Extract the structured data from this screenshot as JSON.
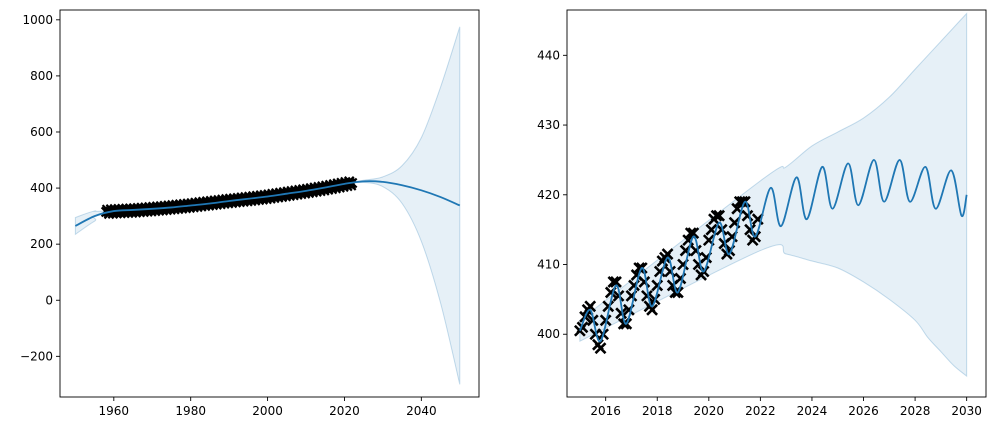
{
  "chart_data": [
    {
      "type": "line",
      "title": "",
      "xlabel": "",
      "ylabel": "",
      "xlim": [
        1946,
        2055
      ],
      "ylim": [
        -345,
        1035
      ],
      "xticks": [
        "1960",
        "1980",
        "2000",
        "2020",
        "2040"
      ],
      "yticks": [
        "−200",
        "0",
        "200",
        "400",
        "600",
        "800",
        "1000"
      ],
      "grid": false,
      "legend": "none",
      "colors": {
        "mean": "#1f77b4",
        "band": "#1f77b4",
        "observed": "#000000"
      },
      "series": [
        {
          "role": "mean",
          "x": [
            1950,
            1955,
            1960,
            1965,
            1970,
            1975,
            1980,
            1985,
            1990,
            1995,
            2000,
            2005,
            2010,
            2015,
            2020,
            2025,
            2030,
            2035,
            2040,
            2045,
            2050
          ],
          "y": [
            265,
            300,
            318,
            322,
            326,
            331,
            338,
            345,
            354,
            362,
            370,
            380,
            390,
            402,
            415,
            424,
            422,
            410,
            392,
            368,
            338
          ]
        },
        {
          "role": "band",
          "x": [
            1950,
            1955,
            1960,
            2010,
            2020,
            2025,
            2030,
            2035,
            2040,
            2045,
            2050
          ],
          "upper": [
            295,
            318,
            322,
            392,
            418,
            428,
            440,
            480,
            580,
            760,
            975
          ],
          "lower": [
            235,
            282,
            314,
            388,
            412,
            420,
            405,
            345,
            210,
            -10,
            -300
          ]
        },
        {
          "role": "observed",
          "x": [
            1958,
            1960,
            1965,
            1970,
            1975,
            1980,
            1985,
            1990,
            1995,
            2000,
            2005,
            2010,
            2015,
            2020,
            2022
          ],
          "y": [
            315,
            317,
            320,
            325,
            331,
            338,
            346,
            354,
            361,
            369,
            379,
            389,
            400,
            413,
            418
          ]
        }
      ]
    },
    {
      "type": "line",
      "title": "",
      "xlabel": "",
      "ylabel": "",
      "xlim": [
        2014.5,
        2030.75
      ],
      "ylim": [
        391,
        446.5
      ],
      "xticks": [
        "2016",
        "2018",
        "2020",
        "2022",
        "2024",
        "2026",
        "2028",
        "2030"
      ],
      "yticks": [
        "400",
        "410",
        "420",
        "430",
        "440"
      ],
      "grid": false,
      "legend": "none",
      "colors": {
        "mean": "#1f77b4",
        "band": "#1f77b4",
        "observed": "#000000"
      },
      "series": [
        {
          "role": "mean",
          "x": [
            2015.0,
            2015.4,
            2015.8,
            2016.4,
            2016.8,
            2017.4,
            2017.8,
            2018.4,
            2018.8,
            2019.4,
            2019.8,
            2020.4,
            2020.8,
            2021.4,
            2021.8,
            2022.4,
            2022.8,
            2023.4,
            2023.8,
            2024.4,
            2024.8,
            2025.4,
            2025.8,
            2026.4,
            2026.8,
            2027.4,
            2027.8,
            2028.4,
            2028.8,
            2029.4,
            2029.8,
            2030.0
          ],
          "y": [
            400.5,
            403.5,
            399.0,
            407.0,
            401.5,
            409.5,
            404.0,
            411.0,
            406.0,
            414.0,
            409.0,
            416.0,
            411.5,
            419.0,
            414.0,
            421.0,
            415.5,
            422.5,
            416.5,
            424.0,
            418.0,
            424.5,
            418.5,
            425.0,
            419.0,
            425.0,
            419.0,
            424.0,
            418.0,
            423.5,
            417.0,
            420.0
          ]
        },
        {
          "role": "band",
          "x": [
            2015.0,
            2022.0,
            2023.0,
            2024.0,
            2025.0,
            2026.0,
            2027.0,
            2028.0,
            2028.5,
            2029.0,
            2029.5,
            2030.0
          ],
          "upper": [
            402.0,
            422.0,
            424.0,
            427.0,
            429.0,
            431.0,
            434.0,
            438.0,
            440.0,
            442.0,
            444.0,
            446.0
          ],
          "lower": [
            399.0,
            412.0,
            411.5,
            410.5,
            409.5,
            407.5,
            405.0,
            402.0,
            399.5,
            397.5,
            395.5,
            394.0
          ]
        },
        {
          "role": "observed",
          "x": [
            2015.0,
            2015.1,
            2015.2,
            2015.3,
            2015.4,
            2015.5,
            2015.6,
            2015.7,
            2015.8,
            2015.9,
            2016.0,
            2016.1,
            2016.2,
            2016.3,
            2016.4,
            2016.5,
            2016.6,
            2016.7,
            2016.8,
            2016.9,
            2017.0,
            2017.1,
            2017.2,
            2017.3,
            2017.4,
            2017.5,
            2017.6,
            2017.7,
            2017.8,
            2017.9,
            2018.0,
            2018.1,
            2018.2,
            2018.3,
            2018.4,
            2018.5,
            2018.6,
            2018.7,
            2018.8,
            2018.9,
            2019.0,
            2019.1,
            2019.2,
            2019.3,
            2019.4,
            2019.5,
            2019.6,
            2019.7,
            2019.8,
            2019.9,
            2020.0,
            2020.1,
            2020.2,
            2020.3,
            2020.4,
            2020.5,
            2020.6,
            2020.7,
            2020.8,
            2020.9,
            2021.0,
            2021.1,
            2021.2,
            2021.3,
            2021.4,
            2021.5,
            2021.6,
            2021.7,
            2021.8,
            2021.9
          ],
          "y": [
            400.5,
            401.0,
            402.5,
            403.5,
            404.0,
            402.0,
            400.0,
            398.5,
            398.0,
            400.0,
            402.0,
            404.0,
            406.0,
            407.5,
            407.5,
            405.5,
            403.0,
            401.5,
            401.5,
            403.5,
            405.5,
            407.0,
            408.5,
            409.5,
            409.5,
            407.5,
            405.5,
            404.0,
            403.5,
            405.0,
            407.0,
            409.0,
            410.5,
            411.0,
            411.5,
            409.0,
            407.0,
            406.0,
            406.0,
            408.0,
            410.0,
            412.0,
            413.5,
            414.5,
            414.5,
            412.0,
            410.0,
            408.5,
            409.0,
            411.0,
            413.5,
            415.0,
            416.5,
            417.0,
            417.0,
            415.0,
            413.0,
            411.5,
            412.0,
            414.0,
            416.0,
            418.0,
            419.0,
            419.0,
            419.0,
            417.0,
            415.0,
            413.5,
            414.0,
            416.5
          ]
        }
      ]
    }
  ]
}
